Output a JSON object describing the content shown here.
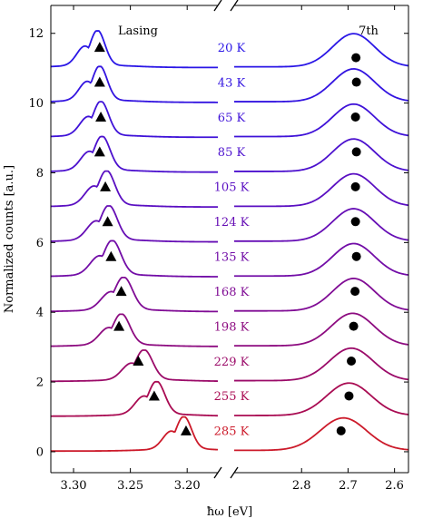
{
  "chart_data": {
    "type": "line",
    "title": "",
    "xlabel": "ħω [eV]",
    "ylabel": "Normalized counts [a.u.]",
    "ylim": [
      -0.6,
      12.8
    ],
    "yticks": [
      0,
      2,
      4,
      6,
      8,
      10,
      12
    ],
    "x_axis_broken": true,
    "x_segments": [
      {
        "xlim": [
          3.32,
          3.173
        ],
        "ticks": [
          3.3,
          3.25,
          3.2
        ],
        "tick_labels": [
          "3.30",
          "3.25",
          "3.20"
        ]
      },
      {
        "xlim": [
          2.945,
          2.57
        ],
        "ticks": [
          2.8,
          2.7,
          2.6
        ],
        "tick_labels": [
          "2.8",
          "2.7",
          "2.6"
        ]
      }
    ],
    "annotations": {
      "left": "Lasing",
      "right": "7th"
    },
    "marker_legend": {
      "triangle": "Lasing peak",
      "circle": "7th peak"
    },
    "grid": false,
    "series": [
      {
        "temp_label": "20 K",
        "offset": 11,
        "color": "#2a16e6",
        "lasing_peak": 3.279,
        "lasing_height": 1.0,
        "lasing_width": 0.0065,
        "triangle": [
          3.277,
          11.6
        ],
        "mode_peak": 2.688,
        "mode_height": 0.95,
        "mode_width": 0.045,
        "circle": [
          2.683,
          11.3
        ]
      },
      {
        "temp_label": "43 K",
        "offset": 10,
        "color": "#3314e0",
        "lasing_peak": 3.277,
        "lasing_height": 0.98,
        "lasing_width": 0.0065,
        "triangle": [
          3.277,
          10.6
        ],
        "mode_peak": 2.688,
        "mode_height": 0.94,
        "mode_width": 0.045,
        "circle": [
          2.682,
          10.6
        ]
      },
      {
        "temp_label": "65 K",
        "offset": 9,
        "color": "#3f12d8",
        "lasing_peak": 3.276,
        "lasing_height": 0.97,
        "lasing_width": 0.0068,
        "triangle": [
          3.276,
          9.6
        ],
        "mode_peak": 2.688,
        "mode_height": 0.93,
        "mode_width": 0.045,
        "circle": [
          2.684,
          9.6
        ]
      },
      {
        "temp_label": "85 K",
        "offset": 8,
        "color": "#4c11ce",
        "lasing_peak": 3.275,
        "lasing_height": 0.97,
        "lasing_width": 0.007,
        "triangle": [
          3.277,
          8.6
        ],
        "mode_peak": 2.688,
        "mode_height": 0.93,
        "mode_width": 0.045,
        "circle": [
          2.682,
          8.6
        ]
      },
      {
        "temp_label": "105 K",
        "offset": 7,
        "color": "#5a0fc2",
        "lasing_peak": 3.271,
        "lasing_height": 0.98,
        "lasing_width": 0.0072,
        "triangle": [
          3.272,
          7.6
        ],
        "mode_peak": 2.688,
        "mode_height": 0.93,
        "mode_width": 0.045,
        "circle": [
          2.684,
          7.6
        ]
      },
      {
        "temp_label": "124 K",
        "offset": 6,
        "color": "#660eb5",
        "lasing_peak": 3.269,
        "lasing_height": 0.98,
        "lasing_width": 0.0074,
        "triangle": [
          3.27,
          6.6
        ],
        "mode_peak": 2.688,
        "mode_height": 0.93,
        "mode_width": 0.045,
        "circle": [
          2.684,
          6.6
        ]
      },
      {
        "temp_label": "135 K",
        "offset": 5,
        "color": "#720da7",
        "lasing_peak": 3.266,
        "lasing_height": 0.98,
        "lasing_width": 0.0076,
        "triangle": [
          3.267,
          5.6
        ],
        "mode_peak": 2.688,
        "mode_height": 0.93,
        "mode_width": 0.045,
        "circle": [
          2.682,
          5.6
        ]
      },
      {
        "temp_label": "168 K",
        "offset": 4,
        "color": "#800c95",
        "lasing_peak": 3.256,
        "lasing_height": 0.93,
        "lasing_width": 0.0078,
        "triangle": [
          3.258,
          4.6
        ],
        "mode_peak": 2.688,
        "mode_height": 0.93,
        "mode_width": 0.045,
        "circle": [
          2.685,
          4.6
        ]
      },
      {
        "temp_label": "198 K",
        "offset": 3,
        "color": "#8d0c80",
        "lasing_peak": 3.258,
        "lasing_height": 0.88,
        "lasing_width": 0.0075,
        "triangle": [
          3.26,
          3.6
        ],
        "mode_peak": 2.69,
        "mode_height": 0.93,
        "mode_width": 0.046,
        "circle": [
          2.688,
          3.6
        ]
      },
      {
        "temp_label": "229 K",
        "offset": 2,
        "color": "#9b0b69",
        "lasing_peak": 3.238,
        "lasing_height": 0.85,
        "lasing_width": 0.0075,
        "triangle": [
          3.243,
          2.6
        ],
        "mode_peak": 2.693,
        "mode_height": 0.93,
        "mode_width": 0.047,
        "circle": [
          2.693,
          2.6
        ]
      },
      {
        "temp_label": "255 K",
        "offset": 1,
        "color": "#a90b52",
        "lasing_peak": 3.227,
        "lasing_height": 0.94,
        "lasing_width": 0.0072,
        "triangle": [
          3.229,
          1.6
        ],
        "mode_peak": 2.698,
        "mode_height": 0.93,
        "mode_width": 0.048,
        "circle": [
          2.698,
          1.6
        ]
      },
      {
        "temp_label": "285 K",
        "offset": 0,
        "color": "#cc1a2a",
        "lasing_peak": 3.203,
        "lasing_height": 0.93,
        "lasing_width": 0.0068,
        "triangle": [
          3.201,
          0.6
        ],
        "mode_peak": 2.71,
        "mode_height": 0.93,
        "mode_width": 0.05,
        "circle": [
          2.715,
          0.6
        ]
      }
    ]
  }
}
